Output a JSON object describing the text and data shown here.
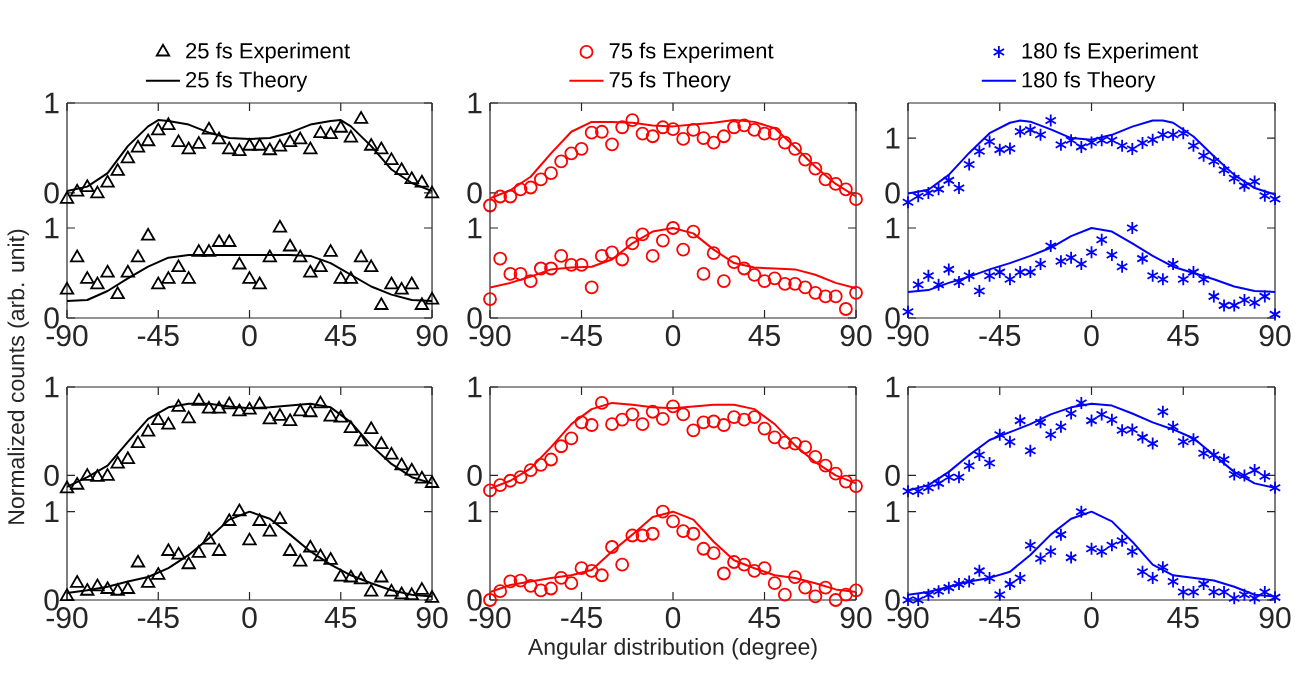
{
  "chart_data": [
    {
      "type": "line",
      "legend": "top",
      "tick_labels": "y",
      "xlim": [
        -90,
        90
      ],
      "xticks": [
        -90,
        -45,
        0,
        45,
        90
      ],
      "ylim": [
        -0.19,
        1
      ],
      "yticks": [
        0,
        1
      ],
      "x": [
        -90,
        -85,
        -80,
        -75,
        -70,
        -65,
        -60,
        -55,
        -50,
        -45,
        -40,
        -35,
        -30,
        -25,
        -20,
        -15,
        -10,
        -5,
        0,
        5,
        10,
        15,
        20,
        25,
        30,
        35,
        40,
        45,
        50,
        55,
        60,
        65,
        70,
        75,
        80,
        85,
        90
      ],
      "series": [
        {
          "name": "25 fs Experiment",
          "type": "scatter",
          "marker": "triangle",
          "color": "#000000",
          "values": [
            -0.07,
            0.01,
            0.06,
            -0.01,
            0.11,
            0.24,
            0.38,
            0.5,
            0.57,
            0.69,
            0.75,
            0.56,
            0.48,
            0.54,
            0.7,
            0.59,
            0.48,
            0.46,
            0.52,
            0.52,
            0.47,
            0.51,
            0.56,
            0.59,
            0.48,
            0.66,
            0.65,
            0.72,
            0.61,
            0.82,
            0.52,
            0.48,
            0.36,
            0.25,
            0.15,
            0.11,
            -0.01
          ]
        },
        {
          "name": "25 fs Theory",
          "type": "line",
          "color": "#000000",
          "x": [
            -90,
            -80,
            -70,
            -60,
            -50,
            -45,
            -40,
            -30,
            -20,
            -10,
            0,
            10,
            20,
            30,
            40,
            45,
            50,
            60,
            70,
            80,
            90
          ],
          "values": [
            0.02,
            0.07,
            0.22,
            0.52,
            0.74,
            0.81,
            0.8,
            0.76,
            0.67,
            0.61,
            0.6,
            0.61,
            0.67,
            0.76,
            0.8,
            0.81,
            0.74,
            0.52,
            0.26,
            0.11,
            0.02
          ]
        }
      ]
    },
    {
      "type": "line",
      "legend": "top",
      "tick_labels": "y",
      "xlim": [
        -90,
        90
      ],
      "xticks": [
        -90,
        -45,
        0,
        45,
        90
      ],
      "ylim": [
        -0.19,
        1
      ],
      "yticks": [
        0,
        1
      ],
      "x": [
        -90,
        -85,
        -80,
        -75,
        -70,
        -65,
        -60,
        -55,
        -50,
        -45,
        -40,
        -35,
        -30,
        -25,
        -20,
        -15,
        -10,
        -5,
        0,
        5,
        10,
        15,
        20,
        25,
        30,
        35,
        40,
        45,
        50,
        55,
        60,
        65,
        70,
        75,
        80,
        85,
        90
      ],
      "series": [
        {
          "name": "75 fs Experiment",
          "type": "scatter",
          "marker": "circle",
          "color": "#ff0000",
          "values": [
            -0.14,
            -0.04,
            -0.04,
            0.04,
            0.06,
            0.15,
            0.22,
            0.35,
            0.44,
            0.49,
            0.67,
            0.68,
            0.54,
            0.73,
            0.81,
            0.66,
            0.63,
            0.73,
            0.71,
            0.6,
            0.7,
            0.61,
            0.56,
            0.63,
            0.73,
            0.75,
            0.7,
            0.66,
            0.66,
            0.56,
            0.49,
            0.37,
            0.27,
            0.15,
            0.1,
            0.04,
            -0.07
          ]
        },
        {
          "name": "75 fs Theory",
          "type": "line",
          "color": "#ff0000",
          "x": [
            -90,
            -80,
            -70,
            -60,
            -50,
            -40,
            -30,
            -20,
            -10,
            0,
            10,
            20,
            30,
            40,
            50,
            60,
            70,
            80,
            90
          ],
          "values": [
            -0.06,
            0.03,
            0.18,
            0.44,
            0.68,
            0.79,
            0.79,
            0.78,
            0.75,
            0.74,
            0.76,
            0.78,
            0.81,
            0.79,
            0.72,
            0.51,
            0.29,
            0.1,
            -0.04
          ]
        }
      ]
    },
    {
      "type": "line",
      "legend": "top",
      "tick_labels": "y",
      "xlim": [
        -90,
        90
      ],
      "xticks": [
        -90,
        -45,
        0,
        45,
        90
      ],
      "ylim": [
        -0.31,
        1.64
      ],
      "yticks": [
        0,
        1
      ],
      "x": [
        -90,
        -85,
        -80,
        -75,
        -70,
        -65,
        -60,
        -55,
        -50,
        -45,
        -40,
        -35,
        -30,
        -25,
        -20,
        -15,
        -10,
        -5,
        0,
        5,
        10,
        15,
        20,
        25,
        30,
        35,
        40,
        45,
        50,
        55,
        60,
        65,
        70,
        75,
        80,
        85,
        90
      ],
      "series": [
        {
          "name": "180 fs Experiment",
          "type": "scatter",
          "marker": "cross",
          "color": "#0000ff",
          "values": [
            -0.17,
            -0.06,
            0,
            0.07,
            0.23,
            0.09,
            0.52,
            0.76,
            0.94,
            0.79,
            0.81,
            1.12,
            1.15,
            1.06,
            1.32,
            0.88,
            0.96,
            0.84,
            0.92,
            0.96,
            0.96,
            0.86,
            0.8,
            0.91,
            0.97,
            1.06,
            1.06,
            1.09,
            0.86,
            0.68,
            0.58,
            0.42,
            0.27,
            0.13,
            0.21,
            -0.05,
            -0.11
          ]
        },
        {
          "name": "180 fs Theory",
          "type": "line",
          "color": "#0000ff",
          "x": [
            -90,
            -80,
            -70,
            -60,
            -50,
            -40,
            -35,
            -30,
            -20,
            -10,
            0,
            10,
            20,
            30,
            35,
            40,
            50,
            60,
            70,
            80,
            90
          ],
          "values": [
            -0.01,
            0.06,
            0.33,
            0.73,
            1.09,
            1.28,
            1.32,
            1.3,
            1.16,
            1.0,
            0.97,
            1.06,
            1.21,
            1.32,
            1.32,
            1.28,
            1.03,
            0.67,
            0.33,
            0.09,
            -0.03
          ]
        }
      ]
    },
    {
      "type": "line",
      "xlim": [
        -90,
        90
      ],
      "xticks": [
        -90,
        -45,
        0,
        45,
        90
      ],
      "ylim": [
        0,
        1.2
      ],
      "yticks": [
        0,
        1
      ],
      "x": [
        -90,
        -85,
        -80,
        -75,
        -70,
        -65,
        -60,
        -55,
        -50,
        -45,
        -40,
        -35,
        -30,
        -25,
        -20,
        -15,
        -10,
        -5,
        0,
        5,
        10,
        15,
        20,
        25,
        30,
        35,
        40,
        45,
        50,
        55,
        60,
        65,
        70,
        75,
        80,
        85,
        90
      ],
      "series": [
        {
          "type": "scatter",
          "marker": "triangle",
          "color": "#000000",
          "values": [
            0.31,
            0.67,
            0.43,
            0.37,
            0.5,
            0.26,
            0.5,
            0.67,
            0.91,
            0.37,
            0.43,
            0.56,
            0.43,
            0.73,
            0.73,
            0.84,
            0.84,
            0.59,
            0.43,
            0.37,
            0.67,
            1.0,
            0.79,
            0.67,
            0.5,
            0.56,
            0.73,
            0.43,
            0.43,
            0.67,
            0.56,
            0.14,
            0.37,
            0.31,
            0.37,
            0.14,
            0.2
          ]
        },
        {
          "type": "line",
          "color": "#000000",
          "x": [
            -90,
            -80,
            -70,
            -60,
            -50,
            -40,
            -30,
            -20,
            -10,
            0,
            10,
            20,
            30,
            40,
            50,
            60,
            70,
            80,
            90
          ],
          "values": [
            0.19,
            0.2,
            0.3,
            0.44,
            0.57,
            0.67,
            0.7,
            0.7,
            0.7,
            0.7,
            0.7,
            0.7,
            0.69,
            0.61,
            0.48,
            0.35,
            0.26,
            0.2,
            0.19
          ]
        }
      ]
    },
    {
      "type": "line",
      "xlim": [
        -90,
        90
      ],
      "xticks": [
        -90,
        -45,
        0,
        45,
        90
      ],
      "ylim": [
        0,
        1.2
      ],
      "yticks": [
        0,
        1
      ],
      "x": [
        -90,
        -85,
        -80,
        -75,
        -70,
        -65,
        -60,
        -55,
        -50,
        -45,
        -40,
        -35,
        -30,
        -25,
        -20,
        -15,
        -10,
        -5,
        0,
        5,
        10,
        15,
        20,
        25,
        30,
        35,
        40,
        45,
        50,
        55,
        60,
        65,
        70,
        75,
        80,
        85,
        90
      ],
      "series": [
        {
          "type": "scatter",
          "marker": "circle",
          "color": "#ff0000",
          "values": [
            0.21,
            0.66,
            0.49,
            0.49,
            0.41,
            0.55,
            0.55,
            0.69,
            0.59,
            0.59,
            0.34,
            0.69,
            0.73,
            0.65,
            0.83,
            0.93,
            0.69,
            0.86,
            1.0,
            0.76,
            0.96,
            0.49,
            0.72,
            0.41,
            0.62,
            0.55,
            0.48,
            0.41,
            0.44,
            0.38,
            0.38,
            0.34,
            0.28,
            0.24,
            0.24,
            0.1,
            0.28
          ]
        },
        {
          "type": "line",
          "color": "#ff0000",
          "x": [
            -90,
            -80,
            -70,
            -60,
            -50,
            -40,
            -30,
            -20,
            -10,
            0,
            10,
            20,
            30,
            40,
            50,
            60,
            70,
            80,
            90
          ],
          "values": [
            0.34,
            0.39,
            0.46,
            0.54,
            0.56,
            0.57,
            0.65,
            0.83,
            0.96,
            1.0,
            0.94,
            0.76,
            0.61,
            0.56,
            0.55,
            0.54,
            0.48,
            0.39,
            0.33
          ]
        }
      ]
    },
    {
      "type": "line",
      "xlim": [
        -90,
        90
      ],
      "xticks": [
        -90,
        -45,
        0,
        45,
        90
      ],
      "ylim": [
        0,
        1.2
      ],
      "yticks": [
        0,
        1
      ],
      "x": [
        -90,
        -85,
        -80,
        -75,
        -70,
        -65,
        -60,
        -55,
        -50,
        -45,
        -40,
        -35,
        -30,
        -25,
        -20,
        -15,
        -10,
        -5,
        0,
        5,
        10,
        15,
        20,
        25,
        30,
        35,
        40,
        45,
        50,
        55,
        60,
        65,
        70,
        75,
        80,
        85,
        90
      ],
      "series": [
        {
          "type": "scatter",
          "marker": "cross",
          "color": "#0000ff",
          "values": [
            0.07,
            0.37,
            0.47,
            0.37,
            0.54,
            0.4,
            0.47,
            0.3,
            0.47,
            0.51,
            0.43,
            0.51,
            0.51,
            0.6,
            0.8,
            0.63,
            0.67,
            0.6,
            0.73,
            0.87,
            0.7,
            0.57,
            1.0,
            0.66,
            0.47,
            0.43,
            0.6,
            0.43,
            0.51,
            0.43,
            0.24,
            0.14,
            0.14,
            0.2,
            0.17,
            0.24,
            0.04
          ]
        },
        {
          "type": "line",
          "color": "#0000ff",
          "x": [
            -90,
            -80,
            -70,
            -60,
            -50,
            -40,
            -30,
            -20,
            -10,
            0,
            10,
            20,
            30,
            40,
            50,
            60,
            70,
            80,
            90
          ],
          "values": [
            0.29,
            0.31,
            0.39,
            0.46,
            0.54,
            0.61,
            0.69,
            0.78,
            0.91,
            1.0,
            0.96,
            0.83,
            0.69,
            0.57,
            0.5,
            0.43,
            0.35,
            0.3,
            0.29
          ]
        }
      ]
    },
    {
      "type": "line",
      "tick_labels": "y",
      "ylabel": "Normalized counts (arb. unit)",
      "xlim": [
        -90,
        90
      ],
      "xticks": [
        -90,
        -45,
        0,
        45,
        90
      ],
      "ylim": [
        -0.21,
        1
      ],
      "yticks": [
        0,
        1
      ],
      "x": [
        -90,
        -85,
        -80,
        -75,
        -70,
        -65,
        -60,
        -55,
        -50,
        -45,
        -40,
        -35,
        -30,
        -25,
        -20,
        -15,
        -10,
        -5,
        0,
        5,
        10,
        15,
        20,
        25,
        30,
        35,
        40,
        45,
        50,
        55,
        60,
        65,
        70,
        75,
        80,
        85,
        90
      ],
      "series": [
        {
          "type": "scatter",
          "marker": "triangle",
          "color": "#000000",
          "values": [
            -0.15,
            -0.11,
            -0.01,
            -0.02,
            -0.01,
            0.13,
            0.18,
            0.36,
            0.49,
            0.62,
            0.57,
            0.77,
            0.64,
            0.84,
            0.75,
            0.75,
            0.8,
            0.72,
            0.74,
            0.8,
            0.63,
            0.67,
            0.61,
            0.72,
            0.71,
            0.81,
            0.66,
            0.65,
            0.53,
            0.38,
            0.52,
            0.35,
            0.23,
            0.11,
            0.05,
            -0.04,
            -0.09
          ]
        },
        {
          "type": "line",
          "color": "#000000",
          "x": [
            -90,
            -80,
            -70,
            -60,
            -50,
            -40,
            -30,
            -20,
            -10,
            0,
            10,
            20,
            30,
            40,
            50,
            60,
            70,
            80,
            90
          ],
          "values": [
            -0.13,
            -0.02,
            0.11,
            0.38,
            0.64,
            0.77,
            0.81,
            0.81,
            0.78,
            0.76,
            0.77,
            0.79,
            0.81,
            0.77,
            0.6,
            0.34,
            0.13,
            -0.02,
            -0.09
          ]
        }
      ]
    },
    {
      "type": "line",
      "tick_labels": "y",
      "xlim": [
        -90,
        90
      ],
      "xticks": [
        -90,
        -45,
        0,
        45,
        90
      ],
      "ylim": [
        -0.21,
        1
      ],
      "yticks": [
        0,
        1
      ],
      "x": [
        -90,
        -85,
        -80,
        -75,
        -70,
        -65,
        -60,
        -55,
        -50,
        -45,
        -40,
        -35,
        -30,
        -25,
        -20,
        -15,
        -10,
        -5,
        0,
        5,
        10,
        15,
        20,
        25,
        30,
        35,
        40,
        45,
        50,
        55,
        60,
        65,
        70,
        75,
        80,
        85,
        90
      ],
      "series": [
        {
          "type": "scatter",
          "marker": "circle",
          "color": "#ff0000",
          "values": [
            -0.17,
            -0.11,
            -0.06,
            -0.02,
            0.06,
            0.12,
            0.18,
            0.33,
            0.42,
            0.6,
            0.57,
            0.82,
            0.58,
            0.63,
            0.69,
            0.58,
            0.72,
            0.64,
            0.78,
            0.69,
            0.51,
            0.6,
            0.61,
            0.57,
            0.66,
            0.63,
            0.66,
            0.53,
            0.43,
            0.37,
            0.36,
            0.32,
            0.21,
            0.11,
            0.02,
            -0.07,
            -0.12
          ]
        },
        {
          "type": "line",
          "color": "#ff0000",
          "x": [
            -90,
            -80,
            -70,
            -60,
            -50,
            -40,
            -30,
            -20,
            -10,
            0,
            10,
            20,
            30,
            40,
            50,
            60,
            70,
            80,
            90
          ],
          "values": [
            -0.15,
            -0.06,
            0.08,
            0.32,
            0.58,
            0.75,
            0.82,
            0.8,
            0.77,
            0.76,
            0.78,
            0.8,
            0.8,
            0.75,
            0.58,
            0.34,
            0.15,
            0,
            -0.09
          ]
        }
      ]
    },
    {
      "type": "line",
      "tick_labels": "y",
      "xlim": [
        -90,
        90
      ],
      "xticks": [
        -90,
        -45,
        0,
        45,
        90
      ],
      "ylim": [
        -0.21,
        1
      ],
      "yticks": [
        0,
        1
      ],
      "x": [
        -90,
        -85,
        -80,
        -75,
        -70,
        -65,
        -60,
        -55,
        -50,
        -45,
        -40,
        -35,
        -30,
        -25,
        -20,
        -15,
        -10,
        -5,
        0,
        5,
        10,
        15,
        20,
        25,
        30,
        35,
        40,
        45,
        50,
        55,
        60,
        65,
        70,
        75,
        80,
        85,
        90
      ],
      "series": [
        {
          "type": "scatter",
          "marker": "cross",
          "color": "#0000ff",
          "values": [
            -0.18,
            -0.18,
            -0.14,
            -0.09,
            -0.02,
            -0.02,
            0.11,
            0.23,
            0.14,
            0.46,
            0.38,
            0.62,
            0.28,
            0.6,
            0.46,
            0.55,
            0.7,
            0.82,
            0.62,
            0.69,
            0.63,
            0.51,
            0.52,
            0.43,
            0.36,
            0.72,
            0.55,
            0.38,
            0.41,
            0.25,
            0.23,
            0.18,
            0.01,
            0,
            0.06,
            -0.01,
            -0.14
          ]
        },
        {
          "type": "line",
          "color": "#0000ff",
          "x": [
            -90,
            -80,
            -70,
            -60,
            -50,
            -40,
            -30,
            -20,
            -10,
            0,
            10,
            20,
            30,
            40,
            50,
            60,
            70,
            80,
            90
          ],
          "values": [
            -0.17,
            -0.11,
            0.04,
            0.23,
            0.4,
            0.49,
            0.58,
            0.69,
            0.77,
            0.81,
            0.79,
            0.7,
            0.6,
            0.52,
            0.42,
            0.23,
            0.04,
            -0.09,
            -0.14
          ]
        }
      ]
    },
    {
      "type": "line",
      "xlim": [
        -90,
        90
      ],
      "xticks": [
        -90,
        -45,
        0,
        45,
        90
      ],
      "ylim": [
        0,
        1.2
      ],
      "yticks": [
        0,
        1
      ],
      "x": [
        -90,
        -85,
        -80,
        -75,
        -70,
        -65,
        -60,
        -55,
        -50,
        -45,
        -40,
        -35,
        -30,
        -25,
        -20,
        -15,
        -10,
        -5,
        0,
        5,
        10,
        15,
        20,
        25,
        30,
        35,
        40,
        45,
        50,
        55,
        60,
        65,
        70,
        75,
        80,
        85,
        90
      ],
      "series": [
        {
          "type": "scatter",
          "marker": "triangle",
          "color": "#000000",
          "values": [
            0.04,
            0.19,
            0.1,
            0.15,
            0.12,
            0.1,
            0.12,
            0.42,
            0.19,
            0.28,
            0.55,
            0.51,
            0.4,
            0.53,
            0.68,
            0.55,
            0.89,
            1.0,
            0.67,
            0.89,
            0.77,
            0.91,
            0.55,
            0.43,
            0.59,
            0.49,
            0.45,
            0.26,
            0.25,
            0.23,
            0.09,
            0.25,
            0.09,
            0.06,
            0.05,
            0.11,
            0.02
          ]
        },
        {
          "type": "line",
          "color": "#000000",
          "x": [
            -90,
            -80,
            -70,
            -60,
            -50,
            -40,
            -30,
            -20,
            -10,
            0,
            10,
            20,
            30,
            40,
            50,
            60,
            70,
            80,
            90
          ],
          "values": [
            0.08,
            0.11,
            0.15,
            0.21,
            0.26,
            0.36,
            0.51,
            0.7,
            0.91,
            1.0,
            0.92,
            0.74,
            0.55,
            0.4,
            0.28,
            0.19,
            0.11,
            0.06,
            0.04
          ]
        }
      ]
    },
    {
      "type": "line",
      "xlabel": "Angular distribution (degree)",
      "xlim": [
        -90,
        90
      ],
      "xticks": [
        -90,
        -45,
        0,
        45,
        90
      ],
      "ylim": [
        0,
        1.2
      ],
      "yticks": [
        0,
        1
      ],
      "x": [
        -90,
        -85,
        -80,
        -75,
        -70,
        -65,
        -60,
        -55,
        -50,
        -45,
        -40,
        -35,
        -30,
        -25,
        -20,
        -15,
        -10,
        -5,
        0,
        5,
        10,
        15,
        20,
        25,
        30,
        35,
        40,
        45,
        50,
        55,
        60,
        65,
        70,
        75,
        80,
        85,
        90
      ],
      "series": [
        {
          "type": "scatter",
          "marker": "circle",
          "color": "#ff0000",
          "values": [
            0,
            0.1,
            0.21,
            0.22,
            0.16,
            0.11,
            0.13,
            0.25,
            0.19,
            0.36,
            0.33,
            0.28,
            0.6,
            0.4,
            0.73,
            0.73,
            0.75,
            1.0,
            0.89,
            0.78,
            0.75,
            0.58,
            0.53,
            0.3,
            0.43,
            0.4,
            0.33,
            0.36,
            0.19,
            0.06,
            0.26,
            0.14,
            0.04,
            0.14,
            0,
            0.06,
            0.11
          ]
        },
        {
          "type": "line",
          "color": "#ff0000",
          "x": [
            -90,
            -80,
            -70,
            -60,
            -50,
            -40,
            -30,
            -20,
            -10,
            0,
            10,
            20,
            30,
            40,
            50,
            60,
            70,
            80,
            90
          ],
          "values": [
            0.09,
            0.17,
            0.21,
            0.25,
            0.28,
            0.34,
            0.55,
            0.74,
            0.94,
            1.0,
            0.91,
            0.66,
            0.45,
            0.36,
            0.28,
            0.25,
            0.19,
            0.12,
            0.09
          ]
        }
      ]
    },
    {
      "type": "line",
      "xlim": [
        -90,
        90
      ],
      "xticks": [
        -90,
        -45,
        0,
        45,
        90
      ],
      "ylim": [
        0,
        1.2
      ],
      "yticks": [
        0,
        1
      ],
      "x": [
        -90,
        -85,
        -80,
        -75,
        -70,
        -65,
        -60,
        -55,
        -50,
        -45,
        -40,
        -35,
        -30,
        -25,
        -20,
        -15,
        -10,
        -5,
        0,
        5,
        10,
        15,
        20,
        25,
        30,
        35,
        40,
        45,
        50,
        55,
        60,
        65,
        70,
        75,
        80,
        85,
        90
      ],
      "series": [
        {
          "type": "scatter",
          "marker": "cross",
          "color": "#0000ff",
          "values": [
            0,
            0,
            0.06,
            0.1,
            0.14,
            0.18,
            0.21,
            0.33,
            0.25,
            0.06,
            0.18,
            0.25,
            0.62,
            0.47,
            0.55,
            0.74,
            0.48,
            1.0,
            0.58,
            0.55,
            0.62,
            0.67,
            0.55,
            0.32,
            0.25,
            0.37,
            0.21,
            0.09,
            0.09,
            0.18,
            0.09,
            0.09,
            0.02,
            0.06,
            0.02,
            0.09,
            0.03
          ]
        },
        {
          "type": "line",
          "color": "#0000ff",
          "x": [
            -90,
            -80,
            -70,
            -60,
            -50,
            -40,
            -30,
            -20,
            -10,
            0,
            10,
            20,
            30,
            40,
            50,
            60,
            70,
            80,
            90
          ],
          "values": [
            0.06,
            0.09,
            0.15,
            0.21,
            0.25,
            0.32,
            0.51,
            0.74,
            0.92,
            1.0,
            0.89,
            0.66,
            0.4,
            0.28,
            0.25,
            0.22,
            0.15,
            0.06,
            0.04
          ]
        }
      ]
    }
  ]
}
